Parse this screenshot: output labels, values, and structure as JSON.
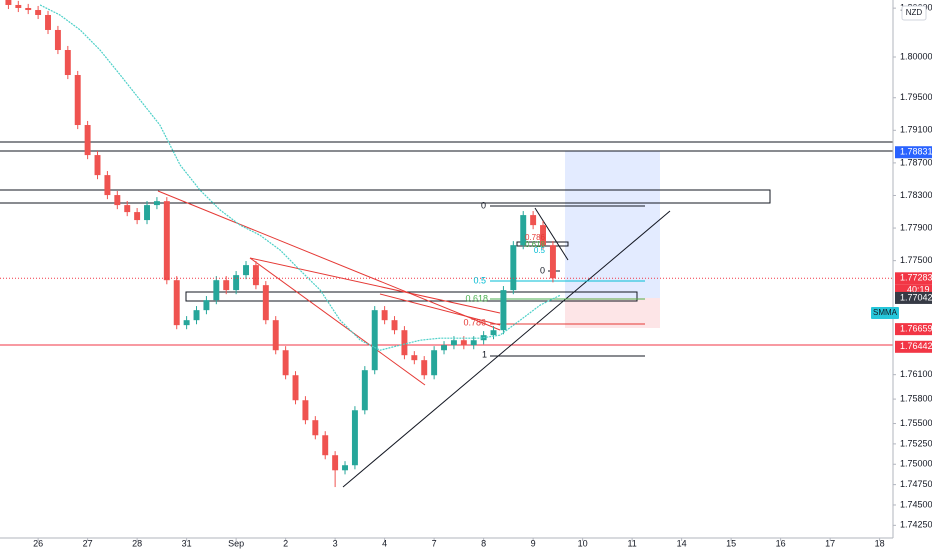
{
  "chart_data": {
    "type": "candlestick",
    "symbol_label": "NZD",
    "indicator_label": "SMMA",
    "countdown": "40:19",
    "xlim": [
      -0.77,
      17.27
    ],
    "ylim": [
      1.7407,
      1.807
    ],
    "xticks": [
      {
        "value": 0,
        "label": "26"
      },
      {
        "value": 1,
        "label": "27"
      },
      {
        "value": 2,
        "label": "28"
      },
      {
        "value": 3,
        "label": "31"
      },
      {
        "value": 4,
        "label": "Sep"
      },
      {
        "value": 5,
        "label": "2"
      },
      {
        "value": 6,
        "label": "3"
      },
      {
        "value": 7,
        "label": "4"
      },
      {
        "value": 8,
        "label": "7"
      },
      {
        "value": 9,
        "label": "8"
      },
      {
        "value": 10,
        "label": "9"
      },
      {
        "value": 11,
        "label": "10"
      },
      {
        "value": 12,
        "label": "11"
      },
      {
        "value": 13,
        "label": "14"
      },
      {
        "value": 14,
        "label": "15"
      },
      {
        "value": 15,
        "label": "16"
      },
      {
        "value": 16,
        "label": "17"
      },
      {
        "value": 17,
        "label": "18"
      }
    ],
    "yticks": [
      {
        "value": 1.806,
        "label": "1.80600"
      },
      {
        "value": 1.8,
        "label": "1.80000"
      },
      {
        "value": 1.795,
        "label": "1.79500"
      },
      {
        "value": 1.791,
        "label": "1.79100"
      },
      {
        "value": 1.787,
        "label": "1.78700"
      },
      {
        "value": 1.783,
        "label": "1.78300"
      },
      {
        "value": 1.779,
        "label": "1.77900"
      },
      {
        "value": 1.775,
        "label": "1.77500"
      },
      {
        "value": 1.761,
        "label": "1.76100"
      },
      {
        "value": 1.758,
        "label": "1.75800"
      },
      {
        "value": 1.755,
        "label": "1.75500"
      },
      {
        "value": 1.7525,
        "label": "1.75250"
      },
      {
        "value": 1.75,
        "label": "1.75000"
      },
      {
        "value": 1.7475,
        "label": "1.74750"
      },
      {
        "value": 1.745,
        "label": "1.74500"
      },
      {
        "value": 1.7425,
        "label": "1.74250"
      }
    ],
    "up_color": "#26a69a",
    "down_color": "#ef5350",
    "candles": {
      "x": [
        -0.6,
        -0.4,
        -0.2,
        0,
        0.2,
        0.4,
        0.6,
        0.8,
        1,
        1.2,
        1.4,
        1.6,
        1.8,
        2,
        2.2,
        2.4,
        2.6,
        2.8,
        3,
        3.2,
        3.4,
        3.6,
        3.8,
        4,
        4.2,
        4.4,
        4.6,
        4.8,
        5,
        5.2,
        5.4,
        5.6,
        5.8,
        6,
        6.2,
        6.4,
        6.6,
        6.8,
        7,
        7.2,
        7.4,
        7.6,
        7.8,
        8,
        8.2,
        8.4,
        8.6,
        8.8,
        9,
        9.2,
        9.4,
        9.6,
        9.8,
        10,
        10.2,
        10.4
      ],
      "open": [
        1.807,
        1.80639,
        1.80602,
        1.80577,
        1.80516,
        1.80332,
        1.80086,
        1.79779,
        1.79165,
        1.78796,
        1.7855,
        1.78305,
        1.78182,
        1.78096,
        1.77998,
        1.78182,
        1.7823,
        1.7726,
        1.76708,
        1.76769,
        1.76892,
        1.77015,
        1.7726,
        1.77138,
        1.77322,
        1.77445,
        1.77199,
        1.76769,
        1.764,
        1.76093,
        1.75786,
        1.75541,
        1.75356,
        1.75111,
        1.74926,
        1.74988,
        1.75663,
        1.76155,
        1.76892,
        1.76769,
        1.76646,
        1.76339,
        1.76278,
        1.76093,
        1.764,
        1.76462,
        1.76523,
        1.76462,
        1.76523,
        1.76585,
        1.76646,
        1.77138,
        1.7769,
        1.78059,
        1.77936,
        1.7769
      ],
      "high": [
        1.8075,
        1.80689,
        1.80652,
        1.80627,
        1.80566,
        1.80382,
        1.80136,
        1.79829,
        1.79215,
        1.78846,
        1.786,
        1.78355,
        1.78232,
        1.78146,
        1.78232,
        1.7828,
        1.7828,
        1.7731,
        1.76819,
        1.76942,
        1.77065,
        1.7731,
        1.7731,
        1.77372,
        1.77495,
        1.77495,
        1.77249,
        1.76819,
        1.7645,
        1.76143,
        1.75836,
        1.75591,
        1.75406,
        1.75161,
        1.75038,
        1.75713,
        1.76205,
        1.76942,
        1.76942,
        1.76819,
        1.76696,
        1.76389,
        1.76328,
        1.7645,
        1.76512,
        1.76573,
        1.76573,
        1.76573,
        1.76635,
        1.76696,
        1.77188,
        1.7774,
        1.78109,
        1.78109,
        1.77986,
        1.7774
      ],
      "low": [
        1.80589,
        1.80552,
        1.80527,
        1.80466,
        1.80282,
        1.80036,
        1.79729,
        1.79115,
        1.78746,
        1.785,
        1.78255,
        1.78132,
        1.78046,
        1.77948,
        1.77948,
        1.78132,
        1.7721,
        1.76658,
        1.76658,
        1.76719,
        1.76842,
        1.76965,
        1.77088,
        1.77088,
        1.77272,
        1.77149,
        1.76719,
        1.7635,
        1.76043,
        1.75736,
        1.75491,
        1.75306,
        1.75061,
        1.7472,
        1.74876,
        1.74938,
        1.75613,
        1.76105,
        1.76719,
        1.76596,
        1.76289,
        1.76228,
        1.76043,
        1.76043,
        1.7635,
        1.76412,
        1.76412,
        1.76412,
        1.76473,
        1.76535,
        1.76596,
        1.77088,
        1.7764,
        1.77886,
        1.7764,
        1.77233
      ],
      "close": [
        1.80639,
        1.80602,
        1.80577,
        1.80516,
        1.80332,
        1.80086,
        1.79779,
        1.79165,
        1.78796,
        1.7855,
        1.78305,
        1.78182,
        1.78096,
        1.77998,
        1.78182,
        1.7823,
        1.7726,
        1.76708,
        1.76769,
        1.76892,
        1.77015,
        1.7726,
        1.77138,
        1.77322,
        1.77445,
        1.77199,
        1.76769,
        1.764,
        1.76093,
        1.75786,
        1.75541,
        1.75356,
        1.75111,
        1.74926,
        1.74988,
        1.75663,
        1.76155,
        1.76892,
        1.76769,
        1.76646,
        1.76339,
        1.76278,
        1.76093,
        1.764,
        1.76462,
        1.76523,
        1.76462,
        1.76523,
        1.76585,
        1.76646,
        1.77138,
        1.7769,
        1.78059,
        1.77936,
        1.7769,
        1.77283
      ]
    },
    "smma": {
      "name": "SMMA",
      "color": "#4dd0c8",
      "x": [
        0.04,
        0.44,
        0.85,
        1.25,
        1.66,
        2.06,
        2.46,
        2.87,
        3.27,
        3.68,
        4.08,
        4.48,
        4.89,
        5.29,
        5.7,
        6.1,
        6.51,
        6.91,
        7.31,
        7.72,
        8.12,
        8.53,
        8.93,
        9.33,
        9.74,
        10.14,
        10.55
      ],
      "values": [
        1.80639,
        1.80516,
        1.80332,
        1.80086,
        1.79779,
        1.79472,
        1.79165,
        1.78673,
        1.78366,
        1.7812,
        1.77936,
        1.77813,
        1.77629,
        1.77383,
        1.77138,
        1.76769,
        1.76523,
        1.764,
        1.76462,
        1.76523,
        1.76548,
        1.76548,
        1.76548,
        1.76585,
        1.76769,
        1.76953,
        1.77076
      ]
    },
    "price_tags": [
      1.78831,
      1.77283,
      1.77042,
      1.76659,
      1.76442
    ],
    "price_tag_colors": [
      "#2962ff",
      "#f23645",
      "#363a45",
      "#f23645",
      "#f23645"
    ],
    "fib_labels": [
      0,
      0.5,
      0.618,
      0.786,
      1,
      0.786,
      0.618,
      0.5,
      0
    ]
  }
}
